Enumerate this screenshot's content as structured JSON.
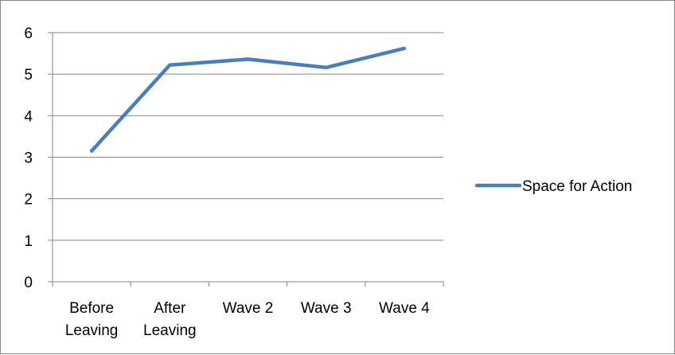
{
  "chart_data": {
    "type": "line",
    "categories": [
      "Before\nLeaving",
      "After\nLeaving",
      "Wave 2",
      "Wave 3",
      "Wave 4"
    ],
    "series": [
      {
        "name": "Space for Action",
        "values": [
          3.15,
          5.22,
          5.36,
          5.16,
          5.62
        ],
        "color": "#4a7ebb"
      }
    ],
    "ylim": [
      0,
      6
    ],
    "yticks": [
      0,
      1,
      2,
      3,
      4,
      5,
      6
    ],
    "grid": true,
    "legend_position": "right",
    "gridline_color": "#868686",
    "axis_color": "#868686"
  }
}
